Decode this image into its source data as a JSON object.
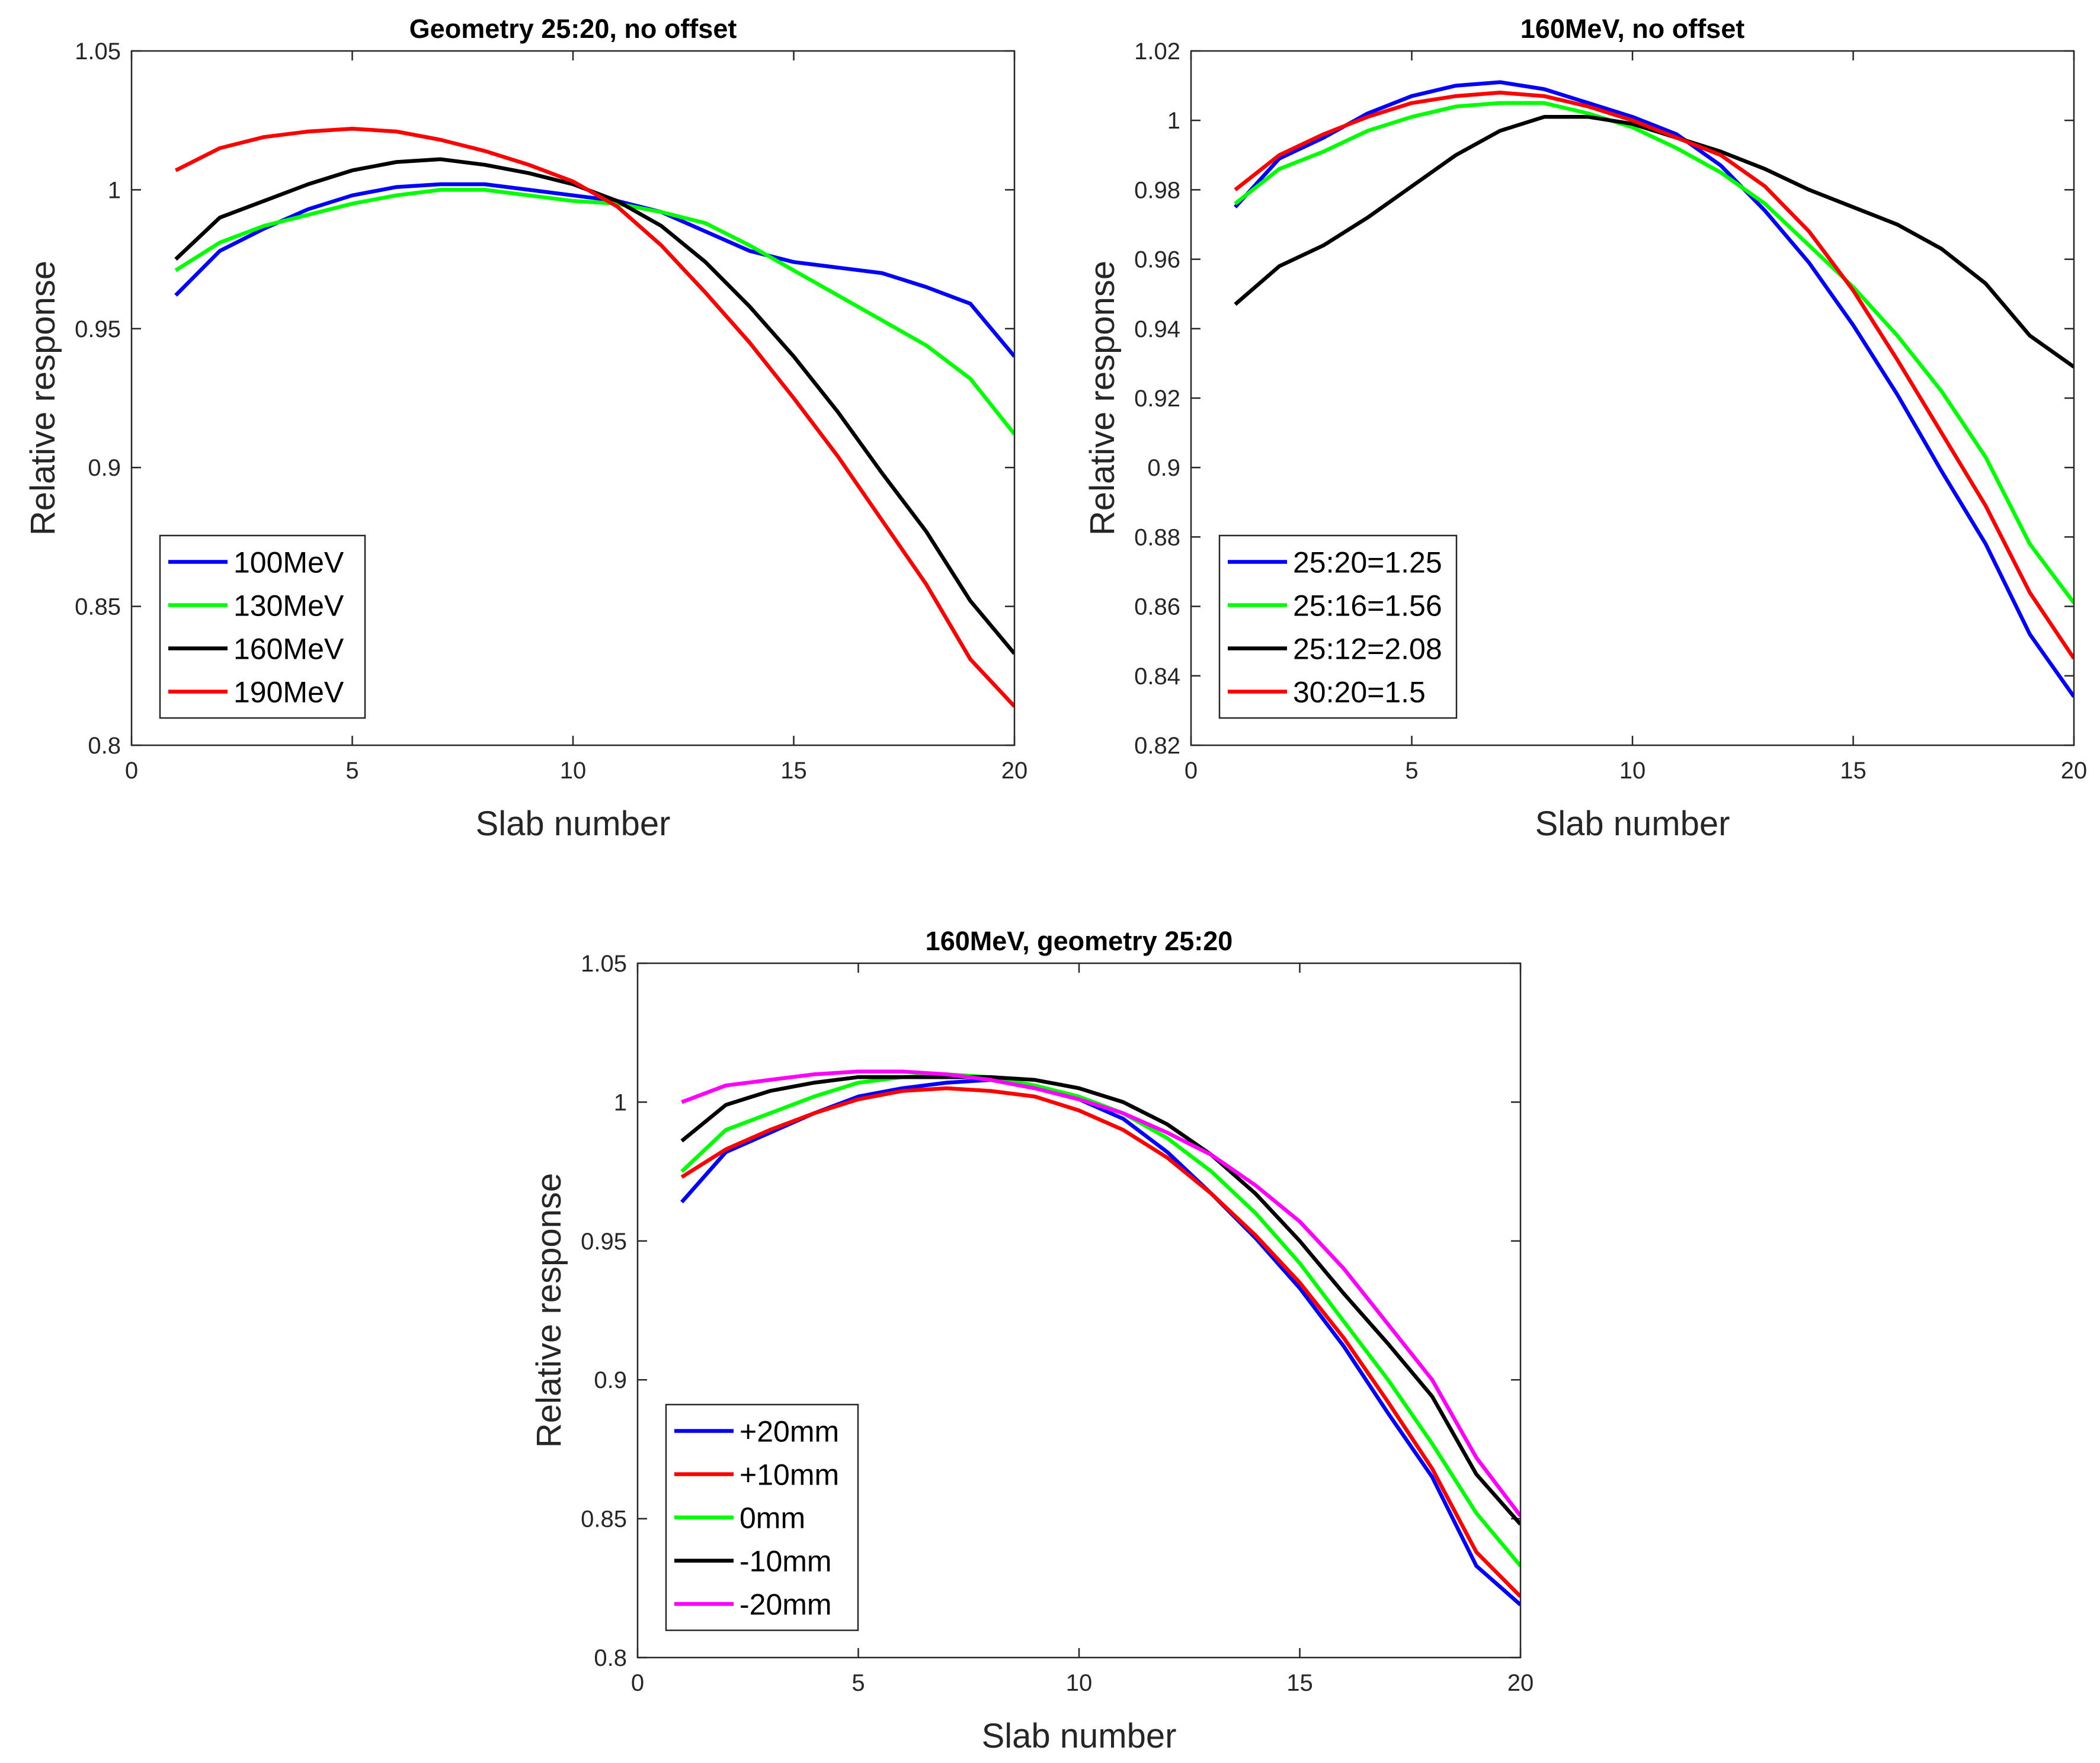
{
  "chart_data": [
    {
      "type": "line",
      "title": "Geometry 25:20, no offset",
      "xlabel": "Slab number",
      "ylabel": "Relative response",
      "xlim": [
        0,
        20
      ],
      "ylim": [
        0.8,
        1.05
      ],
      "xticks": [
        0,
        5,
        10,
        15,
        20
      ],
      "xtick_labels": [
        "0",
        "5",
        "10",
        "15",
        "20"
      ],
      "yticks": [
        0.8,
        0.85,
        0.9,
        0.95,
        1.0,
        1.05
      ],
      "ytick_labels": [
        "0.8",
        "0.85",
        "0.9",
        "0.95",
        "1",
        "1.05"
      ],
      "grid": false,
      "legend_position": "bottom-left",
      "x": [
        1,
        2,
        3,
        4,
        5,
        6,
        7,
        8,
        9,
        10,
        11,
        12,
        13,
        14,
        15,
        16,
        17,
        18,
        19,
        20
      ],
      "series": [
        {
          "name": "100MeV",
          "color": "#0000ff",
          "values": [
            0.962,
            0.978,
            0.986,
            0.993,
            0.998,
            1.001,
            1.002,
            1.002,
            1.0,
            0.998,
            0.996,
            0.992,
            0.985,
            0.978,
            0.974,
            0.972,
            0.97,
            0.965,
            0.959,
            0.94
          ]
        },
        {
          "name": "130MeV",
          "color": "#00ff00",
          "values": [
            0.971,
            0.981,
            0.987,
            0.991,
            0.995,
            0.998,
            1.0,
            1.0,
            0.998,
            0.996,
            0.995,
            0.992,
            0.988,
            0.98,
            0.971,
            0.962,
            0.953,
            0.944,
            0.932,
            0.912
          ]
        },
        {
          "name": "160MeV",
          "color": "#000000",
          "values": [
            0.975,
            0.99,
            0.996,
            1.002,
            1.007,
            1.01,
            1.011,
            1.009,
            1.006,
            1.002,
            0.996,
            0.987,
            0.974,
            0.958,
            0.94,
            0.92,
            0.898,
            0.877,
            0.852,
            0.833
          ]
        },
        {
          "name": "190MeV",
          "color": "#ff0000",
          "values": [
            1.007,
            1.015,
            1.019,
            1.021,
            1.022,
            1.021,
            1.018,
            1.014,
            1.009,
            1.003,
            0.994,
            0.98,
            0.963,
            0.945,
            0.925,
            0.904,
            0.881,
            0.858,
            0.831,
            0.814
          ]
        }
      ]
    },
    {
      "type": "line",
      "title": "160MeV, no offset",
      "xlabel": "Slab number",
      "ylabel": "Relative response",
      "xlim": [
        0,
        20
      ],
      "ylim": [
        0.82,
        1.02
      ],
      "xticks": [
        0,
        5,
        10,
        15,
        20
      ],
      "xtick_labels": [
        "0",
        "5",
        "10",
        "15",
        "20"
      ],
      "yticks": [
        0.82,
        0.84,
        0.86,
        0.88,
        0.9,
        0.92,
        0.94,
        0.96,
        0.98,
        1.0,
        1.02
      ],
      "ytick_labels": [
        "0.82",
        "0.84",
        "0.86",
        "0.88",
        "0.9",
        "0.92",
        "0.94",
        "0.96",
        "0.98",
        "1",
        "1.02"
      ],
      "grid": false,
      "legend_position": "bottom-left",
      "x": [
        1,
        2,
        3,
        4,
        5,
        6,
        7,
        8,
        9,
        10,
        11,
        12,
        13,
        14,
        15,
        16,
        17,
        18,
        19,
        20
      ],
      "series": [
        {
          "name": "25:20=1.25",
          "color": "#0000ff",
          "values": [
            0.975,
            0.989,
            0.995,
            1.002,
            1.007,
            1.01,
            1.011,
            1.009,
            1.005,
            1.001,
            0.996,
            0.987,
            0.974,
            0.959,
            0.941,
            0.921,
            0.899,
            0.878,
            0.852,
            0.834
          ]
        },
        {
          "name": "25:16=1.56",
          "color": "#00ff00",
          "values": [
            0.976,
            0.986,
            0.991,
            0.997,
            1.001,
            1.004,
            1.005,
            1.005,
            1.002,
            0.998,
            0.992,
            0.985,
            0.976,
            0.964,
            0.952,
            0.938,
            0.922,
            0.903,
            0.878,
            0.861
          ]
        },
        {
          "name": "25:12=2.08",
          "color": "#000000",
          "values": [
            0.947,
            0.958,
            0.964,
            0.972,
            0.981,
            0.99,
            0.997,
            1.001,
            1.001,
            0.999,
            0.995,
            0.991,
            0.986,
            0.98,
            0.975,
            0.97,
            0.963,
            0.953,
            0.938,
            0.929
          ]
        },
        {
          "name": "30:20=1.5",
          "color": "#ff0000",
          "values": [
            0.98,
            0.99,
            0.996,
            1.001,
            1.005,
            1.007,
            1.008,
            1.007,
            1.004,
            1.0,
            0.995,
            0.99,
            0.981,
            0.968,
            0.951,
            0.931,
            0.91,
            0.889,
            0.864,
            0.845
          ]
        }
      ]
    },
    {
      "type": "line",
      "title": "160MeV, geometry 25:20",
      "xlabel": "Slab number",
      "ylabel": "Relative response",
      "xlim": [
        0,
        20
      ],
      "ylim": [
        0.8,
        1.05
      ],
      "xticks": [
        0,
        5,
        10,
        15,
        20
      ],
      "xtick_labels": [
        "0",
        "5",
        "10",
        "15",
        "20"
      ],
      "yticks": [
        0.8,
        0.85,
        0.9,
        0.95,
        1.0,
        1.05
      ],
      "ytick_labels": [
        "0.8",
        "0.85",
        "0.9",
        "0.95",
        "1",
        "1.05"
      ],
      "grid": false,
      "legend_position": "bottom-left",
      "x": [
        1,
        2,
        3,
        4,
        5,
        6,
        7,
        8,
        9,
        10,
        11,
        12,
        13,
        14,
        15,
        16,
        17,
        18,
        19,
        20
      ],
      "series": [
        {
          "name": "+20mm",
          "color": "#0000ff",
          "values": [
            0.964,
            0.982,
            0.989,
            0.996,
            1.002,
            1.005,
            1.007,
            1.008,
            1.005,
            1.001,
            0.994,
            0.982,
            0.967,
            0.951,
            0.933,
            0.912,
            0.888,
            0.865,
            0.833,
            0.819
          ]
        },
        {
          "name": "+10mm",
          "color": "#ff0000",
          "values": [
            0.973,
            0.983,
            0.99,
            0.996,
            1.001,
            1.004,
            1.005,
            1.004,
            1.002,
            0.997,
            0.99,
            0.98,
            0.967,
            0.952,
            0.935,
            0.915,
            0.892,
            0.868,
            0.838,
            0.822
          ]
        },
        {
          "name": "0mm",
          "color": "#00ff00",
          "values": [
            0.975,
            0.99,
            0.996,
            1.002,
            1.007,
            1.009,
            1.01,
            1.009,
            1.006,
            1.002,
            0.996,
            0.987,
            0.975,
            0.96,
            0.942,
            0.921,
            0.9,
            0.877,
            0.852,
            0.833
          ]
        },
        {
          "name": "-10mm",
          "color": "#000000",
          "values": [
            0.986,
            0.999,
            1.004,
            1.007,
            1.009,
            1.009,
            1.009,
            1.009,
            1.008,
            1.005,
            1.0,
            0.992,
            0.981,
            0.967,
            0.95,
            0.931,
            0.913,
            0.894,
            0.866,
            0.848
          ]
        },
        {
          "name": "-20mm",
          "color": "#ff00ff",
          "values": [
            1.0,
            1.006,
            1.008,
            1.01,
            1.011,
            1.011,
            1.01,
            1.008,
            1.005,
            1.001,
            0.996,
            0.989,
            0.981,
            0.97,
            0.957,
            0.94,
            0.92,
            0.9,
            0.872,
            0.851
          ]
        }
      ]
    }
  ]
}
